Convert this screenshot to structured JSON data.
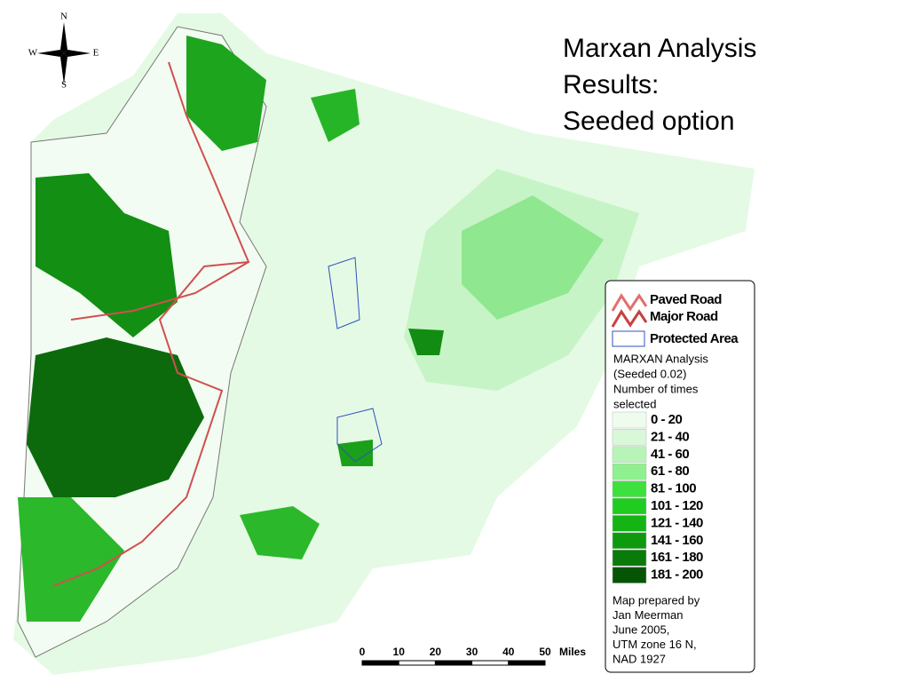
{
  "compass": {
    "n": "N",
    "s": "S",
    "w": "W",
    "e": "E"
  },
  "title": [
    "Marxan Analysis",
    "Results:",
    "Seeded option"
  ],
  "legend": {
    "paved_road": "Paved Road",
    "major_road": "Major Road",
    "protected_area": "Protected Area",
    "heading": [
      "MARXAN Analysis",
      "(Seeded 0.02)",
      "Number of times",
      "selected"
    ],
    "classes": [
      {
        "label": "0 - 20",
        "color": "#eefcee"
      },
      {
        "label": "21 - 40",
        "color": "#d8f8d8"
      },
      {
        "label": "41 - 60",
        "color": "#b8f4b8"
      },
      {
        "label": "61 - 80",
        "color": "#8ef08e"
      },
      {
        "label": "81 - 100",
        "color": "#3de03d"
      },
      {
        "label": "101 - 120",
        "color": "#20cc20"
      },
      {
        "label": "121 - 140",
        "color": "#14b414"
      },
      {
        "label": "141 - 160",
        "color": "#0e9a0e"
      },
      {
        "label": "161 - 180",
        "color": "#0a7a0a"
      },
      {
        "label": "181 - 200",
        "color": "#065406"
      }
    ]
  },
  "credits": [
    "Map prepared by",
    "Jan Meerman",
    "June 2005,",
    "UTM zone 16 N,",
    "NAD 1927"
  ],
  "scale": {
    "ticks": [
      "0",
      "10",
      "20",
      "30",
      "40",
      "50"
    ],
    "unit": "Miles"
  }
}
